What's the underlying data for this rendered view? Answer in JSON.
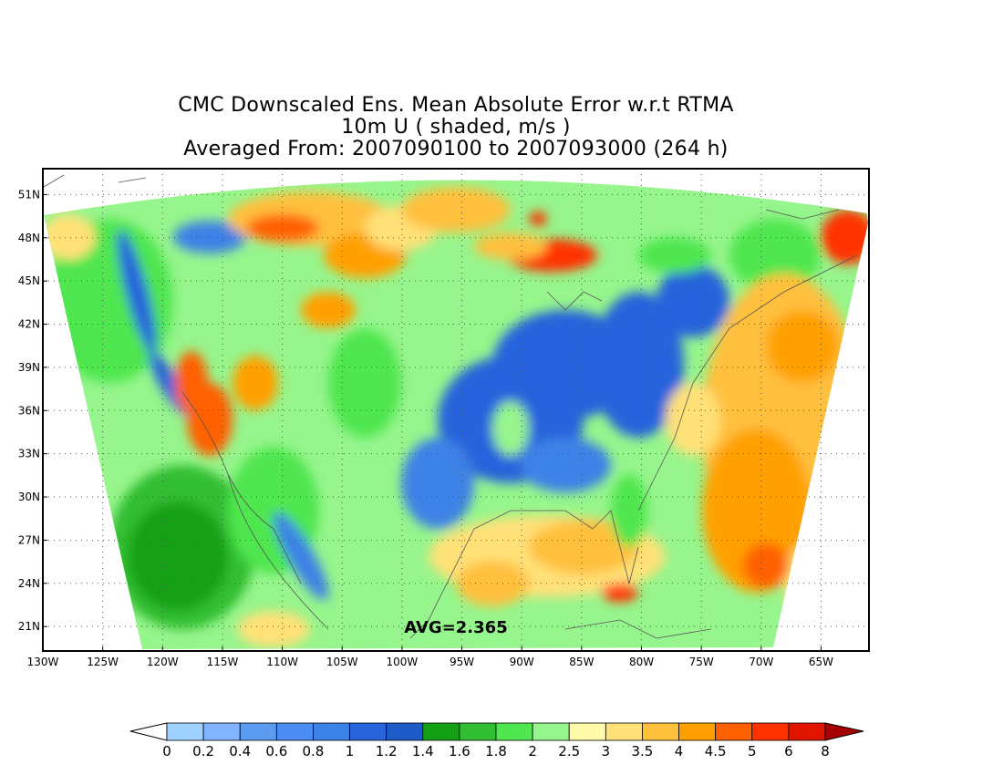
{
  "title": {
    "line1": "CMC Downscaled Ens. Mean Absolute Error w.r.t RTMA",
    "line2": "10m U ( shaded, m/s )",
    "line3": "Averaged From: 2007090100 to 2007093000 (264 h)"
  },
  "map": {
    "lon_range": [
      -130,
      -61
    ],
    "lat_range": [
      19.3,
      52.8
    ],
    "lat_ticks": [
      {
        "value": 51,
        "label": "51N"
      },
      {
        "value": 48,
        "label": "48N"
      },
      {
        "value": 45,
        "label": "45N"
      },
      {
        "value": 42,
        "label": "42N"
      },
      {
        "value": 39,
        "label": "39N"
      },
      {
        "value": 36,
        "label": "36N"
      },
      {
        "value": 33,
        "label": "33N"
      },
      {
        "value": 30,
        "label": "30N"
      },
      {
        "value": 27,
        "label": "27N"
      },
      {
        "value": 24,
        "label": "24N"
      },
      {
        "value": 21,
        "label": "21N"
      }
    ],
    "lon_ticks": [
      {
        "value": -130,
        "label": "130W"
      },
      {
        "value": -125,
        "label": "125W"
      },
      {
        "value": -120,
        "label": "120W"
      },
      {
        "value": -115,
        "label": "115W"
      },
      {
        "value": -110,
        "label": "110W"
      },
      {
        "value": -105,
        "label": "105W"
      },
      {
        "value": -100,
        "label": "100W"
      },
      {
        "value": -95,
        "label": "95W"
      },
      {
        "value": -90,
        "label": "90W"
      },
      {
        "value": -85,
        "label": "85W"
      },
      {
        "value": -80,
        "label": "80W"
      },
      {
        "value": -75,
        "label": "75W"
      },
      {
        "value": -70,
        "label": "70W"
      },
      {
        "value": -65,
        "label": "65W"
      }
    ],
    "grid": true,
    "avg_label": "AVG=2.365"
  },
  "colorbar": {
    "labels": [
      "0",
      "0.2",
      "0.4",
      "0.6",
      "0.8",
      "1",
      "1.2",
      "1.4",
      "1.6",
      "1.8",
      "2",
      "2.5",
      "3",
      "3.5",
      "4",
      "4.5",
      "5",
      "6",
      "8"
    ],
    "under_color": "#ffffff",
    "over_color": "#a50000",
    "colors": [
      "#a0d2ff",
      "#82b4ff",
      "#5a9bf0",
      "#4a8cf0",
      "#3c82e6",
      "#2864dc",
      "#1e5ac8",
      "#14a014",
      "#32be32",
      "#50e650",
      "#96f58c",
      "#fffaaa",
      "#ffe178",
      "#ffc03c",
      "#ffa000",
      "#ff6000",
      "#ff3200",
      "#e11400"
    ]
  }
}
